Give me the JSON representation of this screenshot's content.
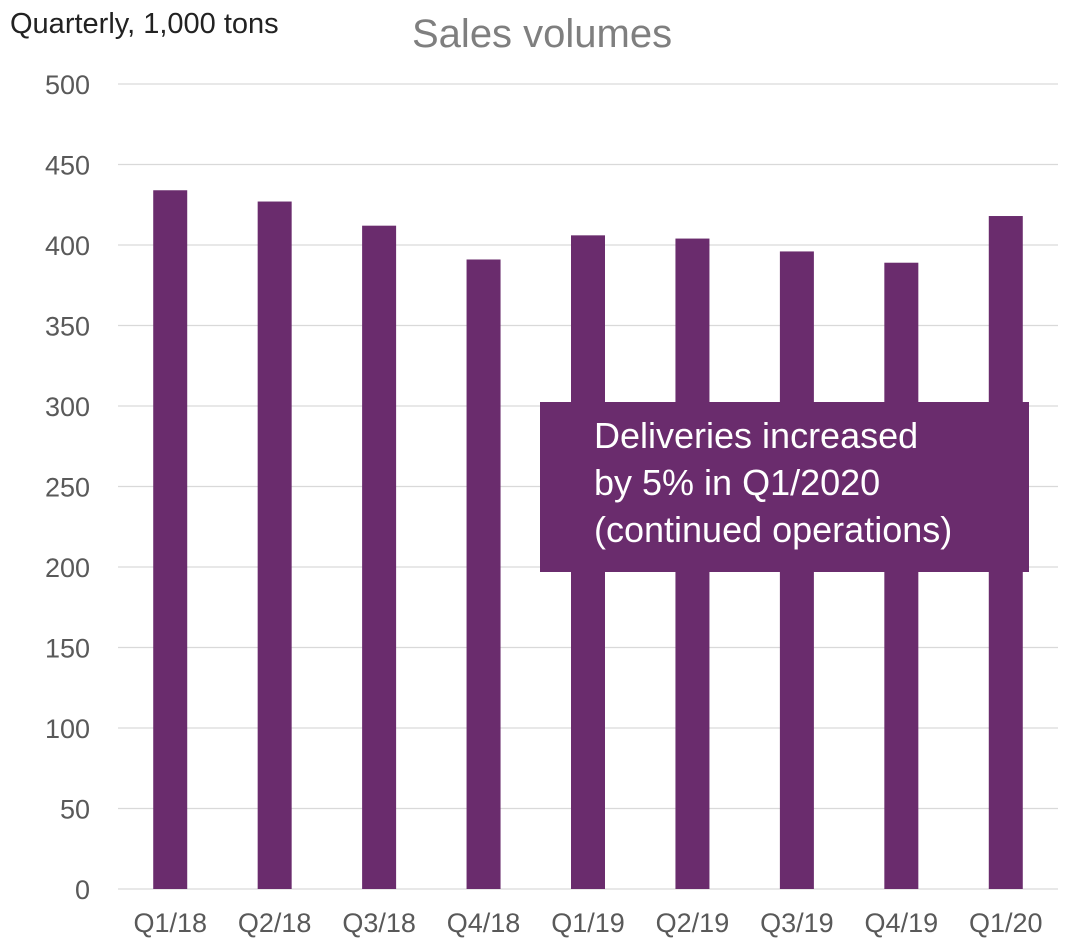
{
  "chart_data": {
    "type": "bar",
    "title": "Sales volumes",
    "ylabel": "Quarterly, 1,000 tons",
    "xlabel": "",
    "categories": [
      "Q1/18",
      "Q2/18",
      "Q3/18",
      "Q4/18",
      "Q1/19",
      "Q2/19",
      "Q3/19",
      "Q4/19",
      "Q1/20"
    ],
    "values": [
      434,
      427,
      412,
      391,
      406,
      404,
      396,
      389,
      418
    ],
    "ylim": [
      0,
      500
    ],
    "yticks": [
      0,
      50,
      100,
      150,
      200,
      250,
      300,
      350,
      400,
      450,
      500
    ],
    "grid": true,
    "legend": "none",
    "colors": {
      "bar": "#6a2c6d",
      "callout": "#6a2c6d",
      "grid": "#d9d9d9",
      "tick_text": "#595959",
      "title": "#7f7f7f"
    }
  },
  "annotation": {
    "lines": [
      "Deliveries increased",
      "by 5% in Q1/2020",
      "(continued operations)"
    ]
  }
}
